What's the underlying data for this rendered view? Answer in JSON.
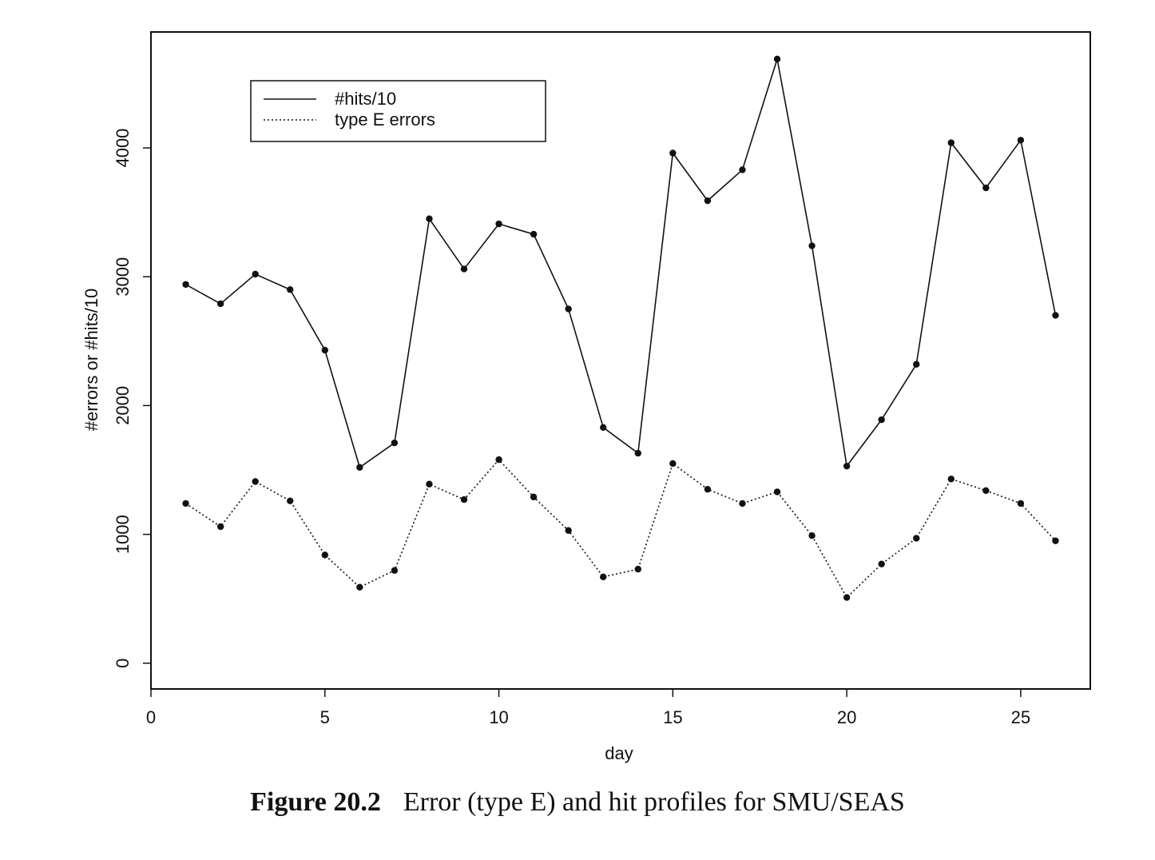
{
  "chart_data": {
    "type": "line",
    "xlabel": "day",
    "ylabel": "#errors or #hits/10",
    "xlim": [
      0,
      27
    ],
    "ylim": [
      -200,
      4900
    ],
    "xticks": [
      0,
      5,
      10,
      15,
      20,
      25
    ],
    "yticks": [
      0,
      1000,
      2000,
      3000,
      4000
    ],
    "grid": false,
    "legend_position": "top-left",
    "x": [
      1,
      2,
      3,
      4,
      5,
      6,
      7,
      8,
      9,
      10,
      11,
      12,
      13,
      14,
      15,
      16,
      17,
      18,
      19,
      20,
      21,
      22,
      23,
      24,
      25,
      26
    ],
    "series": [
      {
        "name": "#hits/10",
        "line_style": "solid",
        "values": [
          2940,
          2790,
          3020,
          2900,
          2430,
          1520,
          1710,
          3450,
          3060,
          3410,
          3330,
          2750,
          1830,
          1630,
          3960,
          3590,
          3830,
          4690,
          3240,
          1530,
          1890,
          2320,
          4040,
          3690,
          4060,
          2700
        ]
      },
      {
        "name": "type E errors",
        "line_style": "dotted",
        "values": [
          1240,
          1060,
          1410,
          1260,
          840,
          590,
          720,
          1390,
          1270,
          1580,
          1290,
          1030,
          670,
          730,
          1550,
          1350,
          1240,
          1330,
          990,
          510,
          770,
          970,
          1430,
          1340,
          1240,
          950
        ]
      }
    ]
  },
  "caption": {
    "label": "Figure 20.2",
    "text": "Error (type E) and hit profiles for SMU/SEAS"
  }
}
